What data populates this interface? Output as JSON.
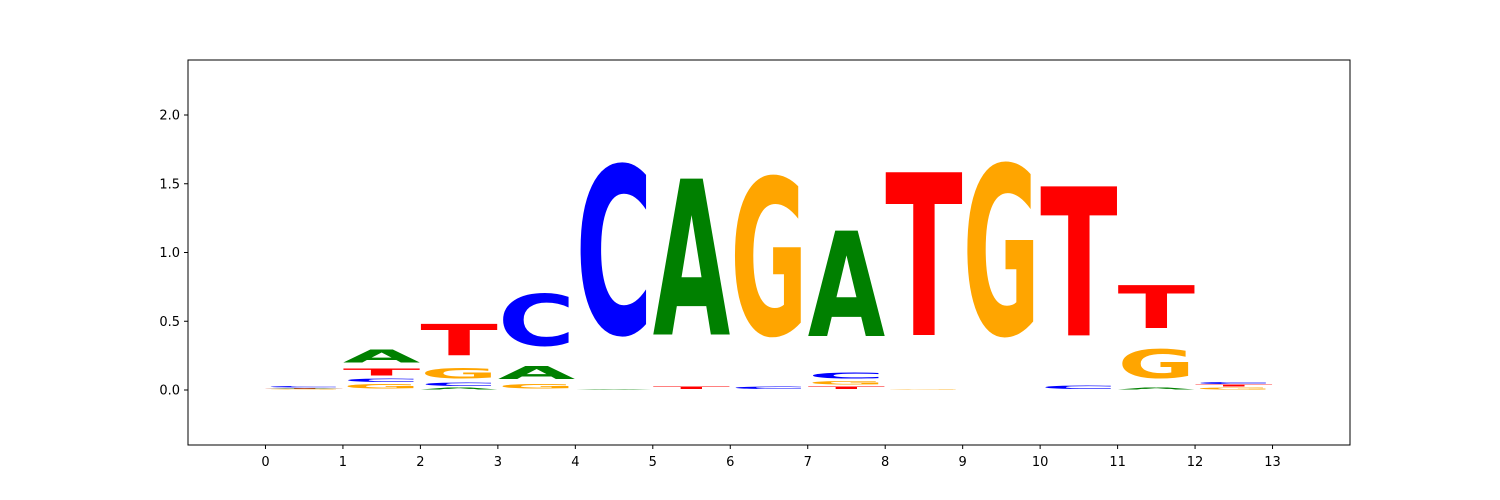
{
  "chart_data": {
    "type": "sequence-logo",
    "title": "",
    "xlabel": "",
    "ylabel": "",
    "xlim": [
      -1,
      14
    ],
    "ylim": [
      -0.4,
      2.4
    ],
    "grid": false,
    "legend": "none",
    "x_ticks": [
      0,
      1,
      2,
      3,
      4,
      5,
      6,
      7,
      8,
      9,
      10,
      11,
      12,
      13
    ],
    "y_ticks": [
      0.0,
      0.5,
      1.0,
      1.5,
      2.0
    ],
    "x_tick_labels": [
      "0",
      "1",
      "2",
      "3",
      "4",
      "5",
      "6",
      "7",
      "8",
      "9",
      "10",
      "11",
      "12",
      "13"
    ],
    "y_tick_labels": [
      "0.0",
      "0.5",
      "1.0",
      "1.5",
      "2.0"
    ],
    "letter_colors": {
      "A": "#008000",
      "C": "#0000ff",
      "G": "#ffa500",
      "T": "#ff0000"
    },
    "positions": [
      {
        "start": 0,
        "letters": [
          {
            "letter": "G",
            "height": 0.005
          },
          {
            "letter": "A",
            "height": 0.005
          },
          {
            "letter": "T",
            "height": 0.005
          },
          {
            "letter": "C",
            "height": 0.015
          }
        ]
      },
      {
        "start": 1,
        "letters": [
          {
            "letter": "G",
            "height": 0.05
          },
          {
            "letter": "C",
            "height": 0.04
          },
          {
            "letter": "T",
            "height": 0.08
          },
          {
            "letter": "A",
            "height": 0.15
          }
        ]
      },
      {
        "start": 2,
        "letters": [
          {
            "letter": "A",
            "height": 0.02
          },
          {
            "letter": "C",
            "height": 0.04
          },
          {
            "letter": "G",
            "height": 0.12
          },
          {
            "letter": "T",
            "height": 0.36
          }
        ]
      },
      {
        "start": 3,
        "letters": [
          {
            "letter": "G",
            "height": 0.05
          },
          {
            "letter": "A",
            "height": 0.15
          },
          {
            "letter": "C",
            "height": 0.6
          }
        ]
      },
      {
        "start": 4,
        "letters": [
          {
            "letter": "A",
            "height": 0.01
          },
          {
            "letter": "C",
            "height": 1.96
          }
        ]
      },
      {
        "start": 5,
        "letters": [
          {
            "letter": "T",
            "height": 0.03
          },
          {
            "letter": "A",
            "height": 1.82
          }
        ]
      },
      {
        "start": 6,
        "letters": [
          {
            "letter": "C",
            "height": 0.03
          },
          {
            "letter": "G",
            "height": 1.83
          }
        ]
      },
      {
        "start": 7,
        "letters": [
          {
            "letter": "T",
            "height": 0.03
          },
          {
            "letter": "G",
            "height": 0.04
          },
          {
            "letter": "C",
            "height": 0.07
          },
          {
            "letter": "A",
            "height": 1.23
          }
        ]
      },
      {
        "start": 8,
        "letters": [
          {
            "letter": "G",
            "height": 0.01
          },
          {
            "letter": "T",
            "height": 1.9
          }
        ]
      },
      {
        "start": 9,
        "letters": [
          {
            "letter": "G",
            "height": 1.98
          }
        ]
      },
      {
        "start": 10,
        "letters": [
          {
            "letter": "C",
            "height": 0.04
          },
          {
            "letter": "T",
            "height": 1.74
          }
        ]
      },
      {
        "start": 11,
        "letters": [
          {
            "letter": "A",
            "height": 0.02
          },
          {
            "letter": "G",
            "height": 0.33
          },
          {
            "letter": "T",
            "height": 0.5
          }
        ]
      },
      {
        "start": 12,
        "letters": [
          {
            "letter": "G",
            "height": 0.02
          },
          {
            "letter": "T",
            "height": 0.02
          },
          {
            "letter": "C",
            "height": 0.02
          }
        ]
      }
    ]
  }
}
